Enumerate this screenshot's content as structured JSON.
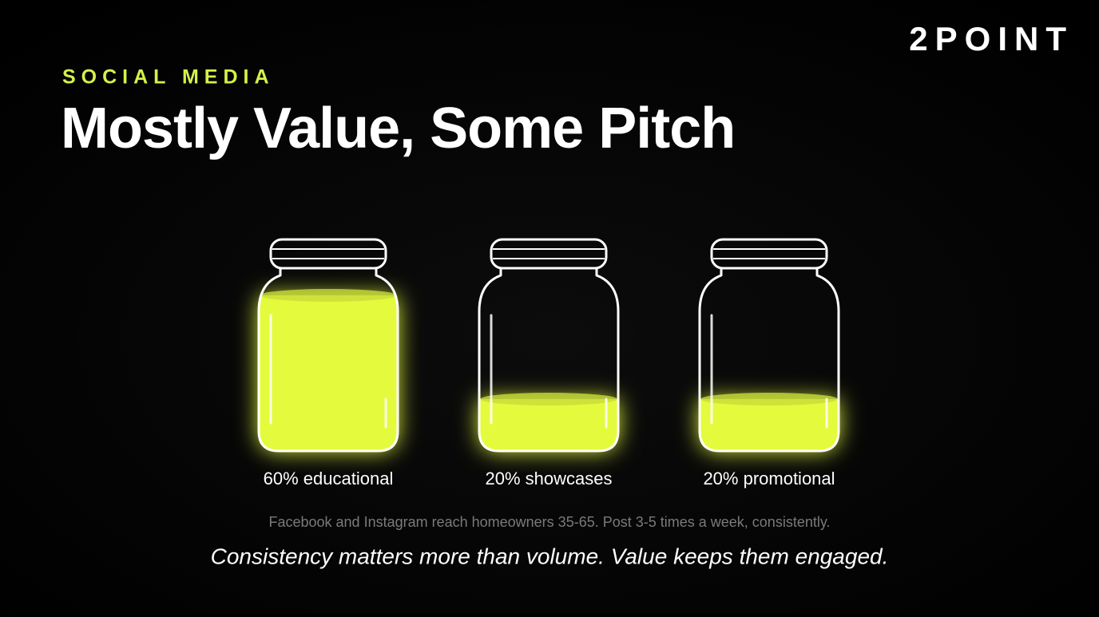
{
  "brand": "2POINT",
  "eyebrow": "SOCIAL MEDIA",
  "title": "Mostly Value, Some Pitch",
  "note": "Facebook and Instagram reach homeowners 35-65. Post 3-5 times a week, consistently.",
  "tagline": "Consistency matters more than volume. Value keeps them engaged.",
  "chart_data": {
    "type": "jar",
    "values": [
      60,
      20,
      20
    ],
    "value_labels": [
      "60% educational",
      "20% showcases",
      "20% promotional"
    ],
    "color": "#e4fb3c"
  }
}
